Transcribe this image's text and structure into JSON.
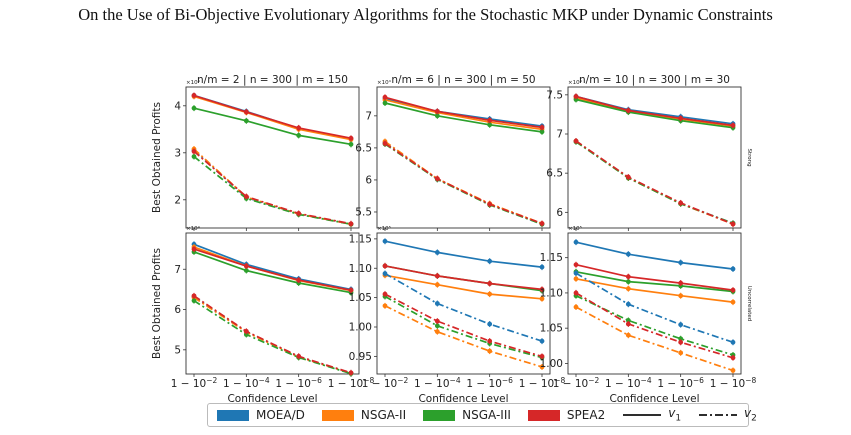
{
  "title": "On the Use of Bi-Objective Evolutionary Algorithms for the Stochastic MKP under Dynamic Constraints",
  "colors": {
    "MOEA/D": "#1f77b4",
    "NSGA-II": "#ff7f0e",
    "NSGA-III": "#2ca02c",
    "SPEA2": "#d62728"
  },
  "legend": {
    "algorithms": [
      "MOEA/D",
      "NSGA-II",
      "NSGA-III",
      "SPEA2"
    ],
    "v1": "v",
    "v1_sub": "1",
    "v2": "v",
    "v2_sub": "2"
  },
  "ylabel": "Best Obtained Profits",
  "xlabel": "Confidence Level",
  "row_labels": [
    "Strong",
    "Uncorrelated"
  ],
  "xtick_labels": [
    {
      "base": "1 − 10",
      "exp": "−2"
    },
    {
      "base": "1 − 10",
      "exp": "−4"
    },
    {
      "base": "1 − 10",
      "exp": "−6"
    },
    {
      "base": "1 − 10",
      "exp": "−8"
    }
  ],
  "chart_data": [
    {
      "type": "line",
      "row": "Strong",
      "col": 0,
      "title": "n/m = 2 | n = 300 | m = 150",
      "multiplier": "×10⁴",
      "x": [
        1,
        2,
        3,
        4
      ],
      "ylim": [
        1.4,
        4.4
      ],
      "yticks": [
        2,
        3,
        4
      ],
      "series": [
        {
          "name": "MOEA/D",
          "variant": "v1",
          "values": [
            4.22,
            3.88,
            3.52,
            3.3
          ]
        },
        {
          "name": "NSGA-II",
          "variant": "v1",
          "values": [
            4.2,
            3.86,
            3.5,
            3.28
          ]
        },
        {
          "name": "NSGA-III",
          "variant": "v1",
          "values": [
            3.95,
            3.68,
            3.37,
            3.18
          ]
        },
        {
          "name": "SPEA2",
          "variant": "v1",
          "values": [
            4.22,
            3.87,
            3.53,
            3.31
          ]
        },
        {
          "name": "MOEA/D",
          "variant": "v2",
          "values": [
            3.05,
            2.05,
            1.7,
            1.48
          ]
        },
        {
          "name": "NSGA-II",
          "variant": "v2",
          "values": [
            3.08,
            2.06,
            1.7,
            1.48
          ]
        },
        {
          "name": "NSGA-III",
          "variant": "v2",
          "values": [
            2.92,
            2.03,
            1.69,
            1.48
          ]
        },
        {
          "name": "SPEA2",
          "variant": "v2",
          "values": [
            3.03,
            2.07,
            1.71,
            1.49
          ]
        }
      ]
    },
    {
      "type": "line",
      "row": "Strong",
      "col": 1,
      "title": "n/m = 6 | n = 300 | m = 50",
      "multiplier": "×10⁴",
      "x": [
        1,
        2,
        3,
        4
      ],
      "ylim": [
        5.25,
        7.45
      ],
      "yticks": [
        5.5,
        6.0,
        6.5,
        7.0
      ],
      "series": [
        {
          "name": "MOEA/D",
          "variant": "v1",
          "values": [
            7.27,
            7.07,
            6.95,
            6.84
          ]
        },
        {
          "name": "NSGA-II",
          "variant": "v1",
          "values": [
            7.25,
            7.05,
            6.9,
            6.79
          ]
        },
        {
          "name": "NSGA-III",
          "variant": "v1",
          "values": [
            7.2,
            7.0,
            6.86,
            6.75
          ]
        },
        {
          "name": "SPEA2",
          "variant": "v1",
          "values": [
            7.29,
            7.07,
            6.93,
            6.82
          ]
        },
        {
          "name": "MOEA/D",
          "variant": "v2",
          "values": [
            6.58,
            6.01,
            5.62,
            5.31
          ]
        },
        {
          "name": "NSGA-II",
          "variant": "v2",
          "values": [
            6.6,
            6.02,
            5.63,
            5.32
          ]
        },
        {
          "name": "NSGA-III",
          "variant": "v2",
          "values": [
            6.56,
            6.01,
            5.61,
            5.31
          ]
        },
        {
          "name": "SPEA2",
          "variant": "v2",
          "values": [
            6.57,
            6.02,
            5.62,
            5.32
          ]
        }
      ]
    },
    {
      "type": "line",
      "row": "Strong",
      "col": 2,
      "title": "n/m = 10 | n = 300 | m = 30",
      "multiplier": "×10⁴",
      "x": [
        1,
        2,
        3,
        4
      ],
      "ylim": [
        5.8,
        7.6
      ],
      "yticks": [
        6.0,
        6.5,
        7.0,
        7.5
      ],
      "series": [
        {
          "name": "MOEA/D",
          "variant": "v1",
          "values": [
            7.48,
            7.31,
            7.22,
            7.13
          ]
        },
        {
          "name": "NSGA-II",
          "variant": "v1",
          "values": [
            7.46,
            7.29,
            7.19,
            7.1
          ]
        },
        {
          "name": "NSGA-III",
          "variant": "v1",
          "values": [
            7.44,
            7.28,
            7.17,
            7.08
          ]
        },
        {
          "name": "SPEA2",
          "variant": "v1",
          "values": [
            7.48,
            7.3,
            7.2,
            7.11
          ]
        },
        {
          "name": "MOEA/D",
          "variant": "v2",
          "values": [
            6.91,
            6.44,
            6.11,
            5.86
          ]
        },
        {
          "name": "NSGA-II",
          "variant": "v2",
          "values": [
            6.91,
            6.44,
            6.11,
            5.85
          ]
        },
        {
          "name": "NSGA-III",
          "variant": "v2",
          "values": [
            6.9,
            6.44,
            6.11,
            5.86
          ]
        },
        {
          "name": "SPEA2",
          "variant": "v2",
          "values": [
            6.91,
            6.45,
            6.12,
            5.85
          ]
        }
      ]
    },
    {
      "type": "line",
      "row": "Uncorrelated",
      "col": 0,
      "title": "",
      "multiplier": "×10⁴",
      "x": [
        1,
        2,
        3,
        4
      ],
      "ylim": [
        4.4,
        7.9
      ],
      "yticks": [
        5,
        6,
        7
      ],
      "series": [
        {
          "name": "MOEA/D",
          "variant": "v1",
          "values": [
            7.62,
            7.12,
            6.76,
            6.5
          ]
        },
        {
          "name": "NSGA-II",
          "variant": "v1",
          "values": [
            7.55,
            7.08,
            6.72,
            6.47
          ]
        },
        {
          "name": "NSGA-III",
          "variant": "v1",
          "values": [
            7.43,
            6.97,
            6.66,
            6.42
          ]
        },
        {
          "name": "SPEA2",
          "variant": "v1",
          "values": [
            7.5,
            7.08,
            6.73,
            6.48
          ]
        },
        {
          "name": "MOEA/D",
          "variant": "v2",
          "values": [
            6.32,
            5.45,
            4.83,
            4.42
          ]
        },
        {
          "name": "NSGA-II",
          "variant": "v2",
          "values": [
            6.3,
            5.44,
            4.82,
            4.42
          ]
        },
        {
          "name": "NSGA-III",
          "variant": "v2",
          "values": [
            6.22,
            5.38,
            4.81,
            4.41
          ]
        },
        {
          "name": "SPEA2",
          "variant": "v2",
          "values": [
            6.34,
            5.46,
            4.84,
            4.43
          ]
        }
      ]
    },
    {
      "type": "line",
      "row": "Uncorrelated",
      "col": 1,
      "title": "",
      "multiplier": "×10⁵",
      "x": [
        1,
        2,
        3,
        4
      ],
      "ylim": [
        0.92,
        1.16
      ],
      "yticks": [
        0.95,
        1.0,
        1.05,
        1.1,
        1.15
      ],
      "series": [
        {
          "name": "MOEA/D",
          "variant": "v1",
          "values": [
            1.146,
            1.127,
            1.112,
            1.102
          ]
        },
        {
          "name": "NSGA-II",
          "variant": "v1",
          "values": [
            1.088,
            1.072,
            1.056,
            1.048
          ]
        },
        {
          "name": "NSGA-III",
          "variant": "v1",
          "values": [
            1.104,
            1.087,
            1.074,
            1.062
          ]
        },
        {
          "name": "SPEA2",
          "variant": "v1",
          "values": [
            1.104,
            1.087,
            1.074,
            1.064
          ]
        },
        {
          "name": "MOEA/D",
          "variant": "v2",
          "values": [
            1.091,
            1.04,
            1.005,
            0.976
          ]
        },
        {
          "name": "NSGA-II",
          "variant": "v2",
          "values": [
            1.036,
            0.992,
            0.959,
            0.932
          ]
        },
        {
          "name": "NSGA-III",
          "variant": "v2",
          "values": [
            1.052,
            1.002,
            0.972,
            0.948
          ]
        },
        {
          "name": "SPEA2",
          "variant": "v2",
          "values": [
            1.056,
            1.01,
            0.976,
            0.95
          ]
        }
      ]
    },
    {
      "type": "line",
      "row": "Uncorrelated",
      "col": 2,
      "title": "",
      "multiplier": "×10⁵",
      "x": [
        1,
        2,
        3,
        4
      ],
      "ylim": [
        0.985,
        1.185
      ],
      "yticks": [
        1.0,
        1.05,
        1.1,
        1.15
      ],
      "series": [
        {
          "name": "MOEA/D",
          "variant": "v1",
          "values": [
            1.172,
            1.155,
            1.143,
            1.134
          ]
        },
        {
          "name": "NSGA-II",
          "variant": "v1",
          "values": [
            1.12,
            1.106,
            1.096,
            1.087
          ]
        },
        {
          "name": "NSGA-III",
          "variant": "v1",
          "values": [
            1.13,
            1.116,
            1.11,
            1.102
          ]
        },
        {
          "name": "SPEA2",
          "variant": "v1",
          "values": [
            1.14,
            1.123,
            1.114,
            1.104
          ]
        },
        {
          "name": "MOEA/D",
          "variant": "v2",
          "values": [
            1.128,
            1.084,
            1.055,
            1.03
          ]
        },
        {
          "name": "NSGA-II",
          "variant": "v2",
          "values": [
            1.08,
            1.04,
            1.015,
            0.99
          ]
        },
        {
          "name": "NSGA-III",
          "variant": "v2",
          "values": [
            1.096,
            1.061,
            1.035,
            1.012
          ]
        },
        {
          "name": "SPEA2",
          "variant": "v2",
          "values": [
            1.1,
            1.056,
            1.03,
            1.008
          ]
        }
      ]
    }
  ]
}
